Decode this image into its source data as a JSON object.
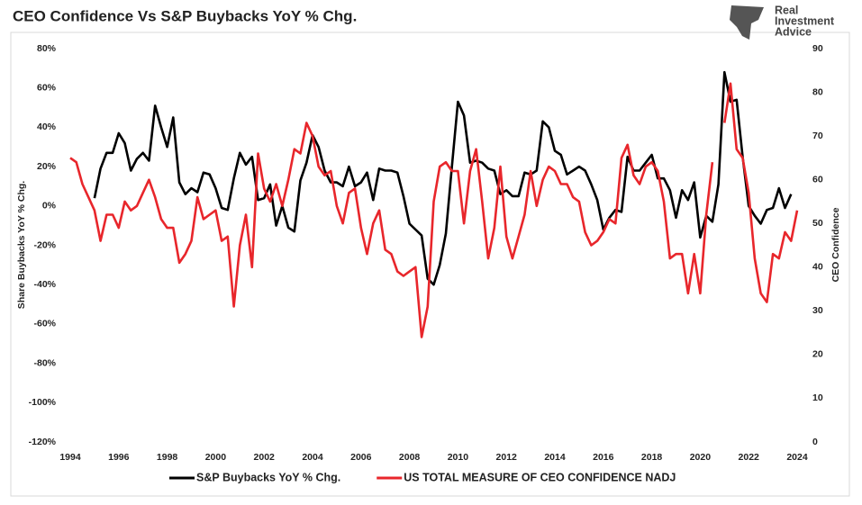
{
  "logo": [
    "Real",
    "Investment",
    "Advice"
  ],
  "chart_data": {
    "type": "line",
    "title": "CEO Confidence Vs S&P Buybacks YoY % Chg.",
    "ylabel": "Share Buybacks YoY % Chg.",
    "y2label": "CEO Confidence",
    "x": [
      1994,
      1994.25,
      1994.5,
      1994.75,
      1995,
      1995.25,
      1995.5,
      1995.75,
      1996,
      1996.25,
      1996.5,
      1996.75,
      1997,
      1997.25,
      1997.5,
      1997.75,
      1998,
      1998.25,
      1998.5,
      1998.75,
      1999,
      1999.25,
      1999.5,
      1999.75,
      2000,
      2000.25,
      2000.5,
      2000.75,
      2001,
      2001.25,
      2001.5,
      2001.75,
      2002,
      2002.25,
      2002.5,
      2002.75,
      2003,
      2003.25,
      2003.5,
      2003.75,
      2004,
      2004.25,
      2004.5,
      2004.75,
      2005,
      2005.25,
      2005.5,
      2005.75,
      2006,
      2006.25,
      2006.5,
      2006.75,
      2007,
      2007.25,
      2007.5,
      2007.75,
      2008,
      2008.25,
      2008.5,
      2008.75,
      2009,
      2009.25,
      2009.5,
      2009.75,
      2010,
      2010.25,
      2010.5,
      2010.75,
      2011,
      2011.25,
      2011.5,
      2011.75,
      2012,
      2012.25,
      2012.5,
      2012.75,
      2013,
      2013.25,
      2013.5,
      2013.75,
      2014,
      2014.25,
      2014.5,
      2014.75,
      2015,
      2015.25,
      2015.5,
      2015.75,
      2016,
      2016.25,
      2016.5,
      2016.75,
      2017,
      2017.25,
      2017.5,
      2017.75,
      2018,
      2018.25,
      2018.5,
      2018.75,
      2019,
      2019.25,
      2019.5,
      2019.75,
      2020,
      2020.25,
      2020.5,
      2020.75,
      2021,
      2021.25,
      2021.5,
      2021.75,
      2022,
      2022.25,
      2022.5,
      2022.75,
      2023,
      2023.25,
      2023.5,
      2023.75,
      2024
    ],
    "series": [
      {
        "name": "S&P Buybacks YoY % Chg.",
        "color": "#000000",
        "axis": "y",
        "values": [
          null,
          null,
          null,
          null,
          4,
          19,
          27,
          27,
          37,
          32,
          18,
          24,
          27,
          23,
          51,
          40,
          30,
          45,
          12,
          6,
          9,
          7,
          17,
          16,
          9,
          -1,
          -2,
          14,
          27,
          21,
          25,
          3,
          4,
          11,
          -10,
          0,
          -11,
          -13,
          13,
          22,
          36,
          30,
          18,
          12,
          12,
          10,
          20,
          10,
          12,
          17,
          3,
          19,
          18,
          18,
          17,
          5,
          -9,
          -12,
          -15,
          -37,
          -40,
          -30,
          -14,
          20,
          53,
          46,
          22,
          23,
          22,
          19,
          18,
          6,
          8,
          5,
          5,
          17,
          16,
          18,
          43,
          40,
          28,
          26,
          16,
          18,
          20,
          18,
          11,
          3,
          -12,
          -6,
          -2,
          -3,
          25,
          18,
          18,
          22,
          26,
          14,
          14,
          8,
          -6,
          8,
          3,
          12,
          -16,
          -5,
          -8,
          11,
          68,
          53,
          54,
          25,
          0,
          -5,
          -9,
          -2,
          -1,
          9,
          -1,
          6,
          null
        ]
      },
      {
        "name": "US TOTAL MEASURE OF CEO CONFIDENCE NADJ",
        "color": "#e8262b",
        "axis": "y2",
        "values": [
          65,
          64,
          59,
          56,
          53,
          46,
          52,
          52,
          49,
          55,
          53,
          54,
          57,
          60,
          56,
          51,
          49,
          49,
          41,
          43,
          46,
          56,
          51,
          52,
          53,
          46,
          47,
          31,
          45,
          52,
          40,
          66,
          58,
          55,
          59,
          54,
          60,
          67,
          66,
          73,
          70,
          63,
          61,
          62,
          54,
          50,
          57,
          58,
          49,
          43,
          50,
          53,
          44,
          43,
          39,
          38,
          39,
          40,
          24,
          31,
          55,
          63,
          64,
          62,
          62,
          50,
          62,
          67,
          55,
          42,
          49,
          63,
          47,
          42,
          47,
          52,
          62,
          54,
          60,
          63,
          62,
          59,
          59,
          56,
          55,
          48,
          45,
          46,
          48,
          51,
          50,
          65,
          68,
          61,
          59,
          63,
          64,
          62,
          55,
          42,
          43,
          43,
          34,
          43,
          34,
          52,
          64,
          null,
          73,
          82,
          67,
          65,
          57,
          42,
          34,
          32,
          43,
          42,
          48,
          46,
          53
        ]
      }
    ],
    "xlim": [
      1994,
      2024
    ],
    "xticks": [
      1994,
      1996,
      1998,
      2000,
      2002,
      2004,
      2006,
      2008,
      2010,
      2012,
      2014,
      2016,
      2018,
      2020,
      2022,
      2024
    ],
    "ylim": [
      -120,
      80
    ],
    "yticks": [
      {
        "value": -120,
        "label": "-120%"
      },
      {
        "value": -100,
        "label": "-100%"
      },
      {
        "value": -80,
        "label": "-80%"
      },
      {
        "value": -60,
        "label": "-60%"
      },
      {
        "value": -40,
        "label": "-40%"
      },
      {
        "value": -20,
        "label": "-20%"
      },
      {
        "value": 0,
        "label": "0%"
      },
      {
        "value": 20,
        "label": "20%"
      },
      {
        "value": 40,
        "label": "40%"
      },
      {
        "value": 60,
        "label": "60%"
      },
      {
        "value": 80,
        "label": "80%"
      }
    ],
    "y2lim": [
      0,
      90
    ],
    "y2ticks": [
      0,
      10,
      20,
      30,
      40,
      50,
      60,
      70,
      80,
      90
    ],
    "grid": false
  }
}
